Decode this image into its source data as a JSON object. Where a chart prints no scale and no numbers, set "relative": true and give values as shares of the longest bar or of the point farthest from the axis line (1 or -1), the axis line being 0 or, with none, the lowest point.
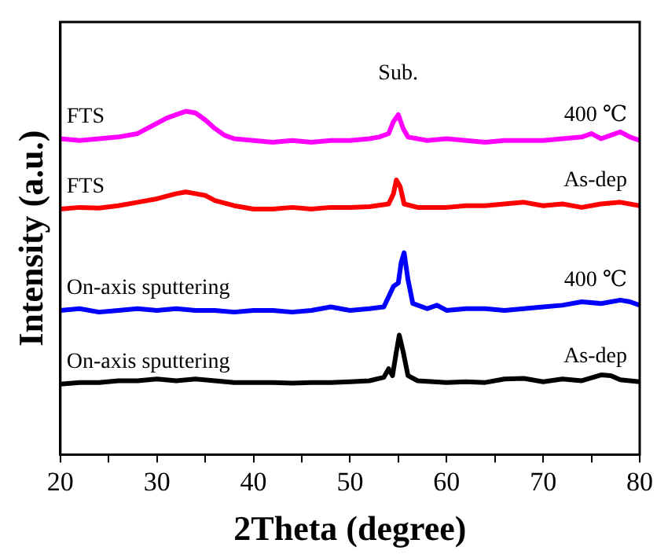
{
  "chart_data": {
    "type": "line",
    "relative": true,
    "xlabel": "2Theta (degree)",
    "ylabel": "Intensity (a.u.)",
    "xlim": [
      20,
      80
    ],
    "xticks": [
      20,
      {
        "value": 25,
        "label": null
      },
      30,
      {
        "value": 35,
        "label": null
      },
      40,
      {
        "value": 45,
        "label": null
      },
      50,
      {
        "value": 55,
        "label": null
      },
      60,
      {
        "value": 65,
        "label": null
      },
      70,
      {
        "value": 75,
        "label": null
      },
      80
    ],
    "grid": false,
    "legend": false,
    "marker": "none",
    "line_style": "solid",
    "series": [
      {
        "name": "FTS",
        "color": "#ff00ff",
        "x": [
          20,
          22,
          24,
          26,
          28,
          29,
          30,
          31,
          32,
          33,
          34,
          35,
          36,
          37,
          38,
          40,
          42,
          44,
          46,
          48,
          50,
          52,
          53,
          54,
          54.5,
          55,
          55.5,
          56,
          58,
          60,
          62,
          64,
          66,
          68,
          70,
          72,
          74,
          75,
          76,
          77,
          78,
          79,
          80
        ],
        "values": [
          0.92,
          0.915,
          0.92,
          0.925,
          0.935,
          0.95,
          0.965,
          0.98,
          0.99,
          1,
          0.995,
          0.975,
          0.95,
          0.93,
          0.92,
          0.915,
          0.91,
          0.915,
          0.91,
          0.915,
          0.915,
          0.92,
          0.925,
          0.935,
          0.97,
          0.99,
          0.95,
          0.925,
          0.915,
          0.92,
          0.915,
          0.91,
          0.915,
          0.915,
          0.915,
          0.92,
          0.925,
          0.935,
          0.92,
          0.93,
          0.94,
          0.925,
          0.915
        ]
      },
      {
        "name": "FTS",
        "color": "#ff0000",
        "x": [
          20,
          22,
          24,
          26,
          28,
          30,
          32,
          33,
          34,
          35,
          36,
          38,
          40,
          42,
          44,
          46,
          48,
          50,
          52,
          54,
          54.5,
          54.8,
          55.2,
          55.6,
          57,
          60,
          62,
          64,
          66,
          68,
          70,
          72,
          74,
          76,
          78,
          80
        ],
        "values": [
          0.715,
          0.72,
          0.718,
          0.725,
          0.735,
          0.745,
          0.76,
          0.765,
          0.76,
          0.755,
          0.74,
          0.725,
          0.715,
          0.715,
          0.72,
          0.715,
          0.72,
          0.72,
          0.722,
          0.73,
          0.76,
          0.8,
          0.78,
          0.73,
          0.72,
          0.72,
          0.725,
          0.725,
          0.73,
          0.735,
          0.725,
          0.73,
          0.72,
          0.73,
          0.735,
          0.725
        ]
      },
      {
        "name": "On-axis sputtering",
        "color": "#0000ff",
        "x": [
          20,
          22,
          24,
          26,
          28,
          30,
          32,
          34,
          36,
          38,
          40,
          42,
          44,
          46,
          48,
          50,
          52,
          53.5,
          54.5,
          55,
          55.3,
          55.6,
          56,
          56.5,
          58,
          59,
          60,
          62,
          64,
          66,
          68,
          70,
          72,
          74,
          76,
          78,
          79,
          80
        ],
        "values": [
          0.42,
          0.425,
          0.415,
          0.42,
          0.425,
          0.42,
          0.425,
          0.42,
          0.42,
          0.415,
          0.42,
          0.42,
          0.415,
          0.42,
          0.43,
          0.42,
          0.425,
          0.43,
          0.49,
          0.5,
          0.56,
          0.588,
          0.51,
          0.44,
          0.425,
          0.435,
          0.42,
          0.425,
          0.425,
          0.42,
          0.425,
          0.43,
          0.435,
          0.445,
          0.44,
          0.45,
          0.445,
          0.435
        ]
      },
      {
        "name": "On-axis sputtering",
        "color": "#000000",
        "x": [
          20,
          22,
          24,
          26,
          28,
          30,
          32,
          34,
          36,
          38,
          40,
          42,
          44,
          46,
          48,
          50,
          52,
          53.5,
          54,
          54.4,
          54.8,
          55.1,
          55.5,
          56,
          57,
          60,
          62,
          64,
          66,
          68,
          70,
          72,
          74,
          76,
          77,
          78,
          80
        ],
        "values": [
          0.205,
          0.21,
          0.21,
          0.215,
          0.215,
          0.22,
          0.215,
          0.22,
          0.215,
          0.21,
          0.21,
          0.21,
          0.208,
          0.21,
          0.21,
          0.212,
          0.215,
          0.225,
          0.25,
          0.23,
          0.3,
          0.348,
          0.3,
          0.23,
          0.215,
          0.21,
          0.212,
          0.21,
          0.22,
          0.222,
          0.212,
          0.22,
          0.215,
          0.232,
          0.23,
          0.218,
          0.212
        ]
      }
    ],
    "annotations": [
      "Sub.",
      "400 ℃",
      "As-dep",
      "400 ℃",
      "As-dep"
    ]
  }
}
